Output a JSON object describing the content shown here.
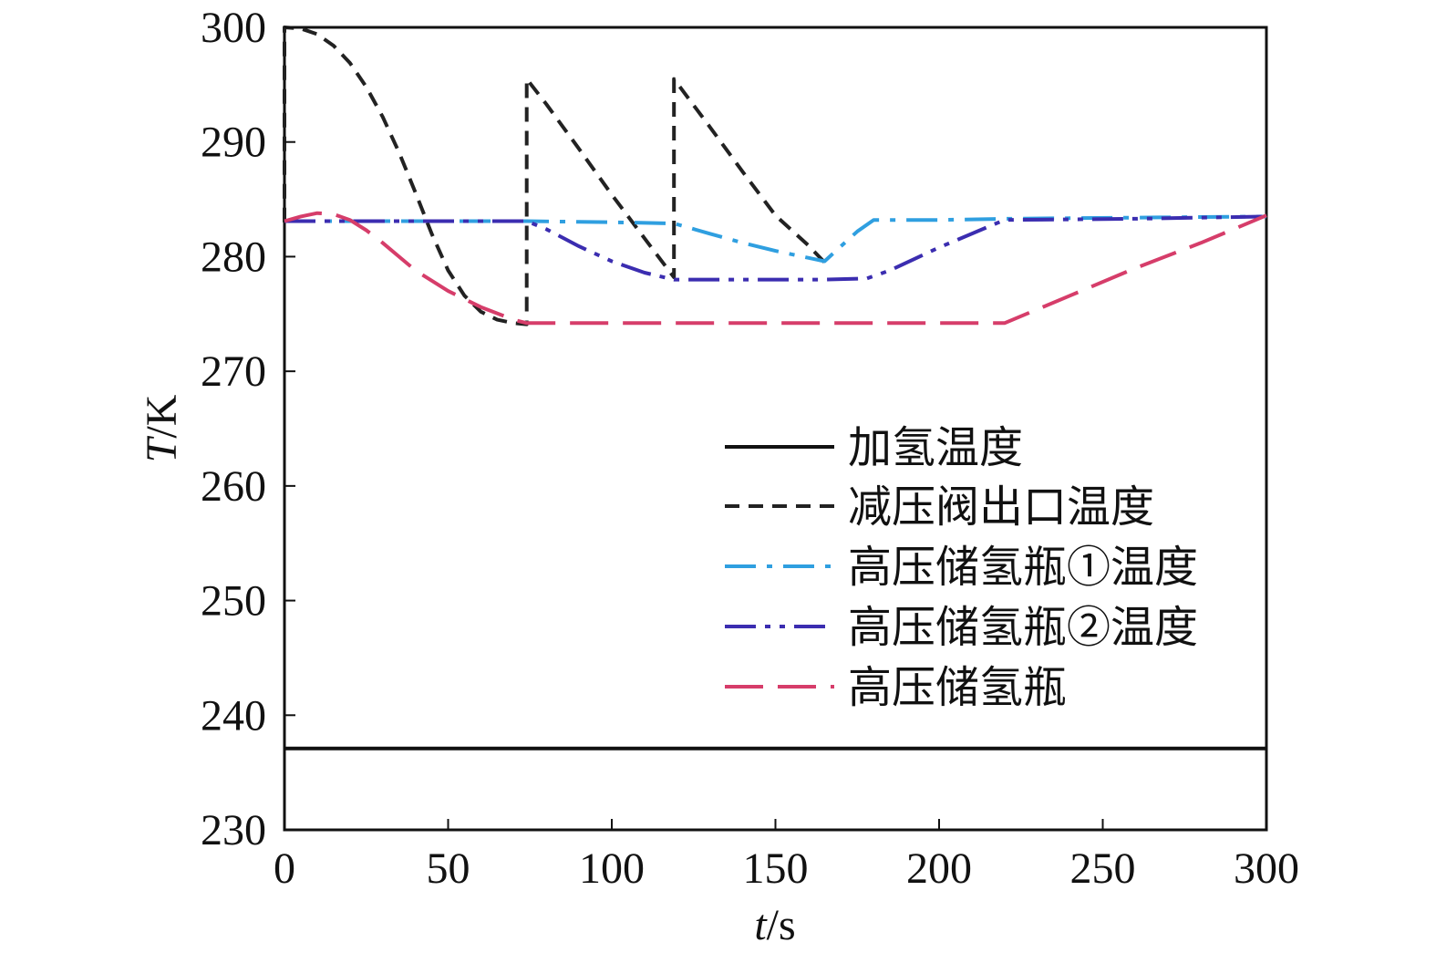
{
  "chart_data": {
    "type": "line",
    "title": "",
    "xlabel": {
      "var": "t",
      "unit": "/s"
    },
    "ylabel": {
      "var": "T",
      "unit": "/K"
    },
    "xlim": [
      0,
      300
    ],
    "ylim": [
      230,
      300
    ],
    "xticks": [
      0,
      50,
      100,
      150,
      200,
      250,
      300
    ],
    "yticks": [
      230,
      240,
      250,
      260,
      270,
      280,
      290,
      300
    ],
    "grid": false,
    "legend_position": "center-right",
    "series": [
      {
        "name": "加氢温度",
        "color": "#111111",
        "dash": "solid",
        "points": [
          [
            0,
            237.1
          ],
          [
            300,
            237.1
          ]
        ]
      },
      {
        "name": "减压阀出口温度",
        "color": "#222222",
        "dash": "dash",
        "points": [
          [
            0,
            283
          ],
          [
            0,
            300
          ],
          [
            5,
            299.9
          ],
          [
            10,
            299.4
          ],
          [
            15,
            298.4
          ],
          [
            20,
            296.9
          ],
          [
            25,
            294.8
          ],
          [
            30,
            292.2
          ],
          [
            35,
            289.1
          ],
          [
            40,
            285.6
          ],
          [
            45,
            282.0
          ],
          [
            50,
            278.8
          ],
          [
            55,
            276.6
          ],
          [
            60,
            275.2
          ],
          [
            65,
            274.5
          ],
          [
            70,
            274.2
          ],
          [
            74,
            274.1
          ],
          [
            74,
            295.5
          ],
          [
            80,
            293.3
          ],
          [
            90,
            289.4
          ],
          [
            100,
            285.4
          ],
          [
            110,
            281.6
          ],
          [
            119,
            278.2
          ],
          [
            119,
            295.5
          ],
          [
            130,
            291.3
          ],
          [
            140,
            287.4
          ],
          [
            150,
            283.6
          ],
          [
            160,
            281.0
          ],
          [
            165,
            279.5
          ]
        ]
      },
      {
        "name": "高压储氢瓶①温度",
        "color": "#2f9fe0",
        "dash": "dashdot",
        "points": [
          [
            0,
            283.1
          ],
          [
            74,
            283.1
          ],
          [
            100,
            283.0
          ],
          [
            119,
            282.9
          ],
          [
            130,
            282.0
          ],
          [
            140,
            281.2
          ],
          [
            150,
            280.5
          ],
          [
            160,
            279.9
          ],
          [
            165,
            279.6
          ],
          [
            170,
            280.9
          ],
          [
            175,
            282.2
          ],
          [
            180,
            283.2
          ],
          [
            200,
            283.2
          ],
          [
            220,
            283.3
          ],
          [
            300,
            283.5
          ]
        ]
      },
      {
        "name": "高压储氢瓶②温度",
        "color": "#3b2db0",
        "dash": "dashdotdot",
        "points": [
          [
            0,
            283.1
          ],
          [
            74,
            283.1
          ],
          [
            80,
            282.4
          ],
          [
            90,
            280.9
          ],
          [
            100,
            279.6
          ],
          [
            110,
            278.6
          ],
          [
            119,
            278.0
          ],
          [
            130,
            278.0
          ],
          [
            150,
            278.0
          ],
          [
            165,
            278.0
          ],
          [
            178,
            278.1
          ],
          [
            185,
            278.8
          ],
          [
            200,
            280.8
          ],
          [
            215,
            282.6
          ],
          [
            220,
            283.2
          ],
          [
            260,
            283.3
          ],
          [
            300,
            283.5
          ]
        ]
      },
      {
        "name": "高压储氢瓶",
        "color": "#d63d6a",
        "dash": "longdash",
        "points": [
          [
            0,
            283.1
          ],
          [
            5,
            283.5
          ],
          [
            10,
            283.8
          ],
          [
            15,
            283.7
          ],
          [
            20,
            283.2
          ],
          [
            25,
            282.3
          ],
          [
            30,
            281.2
          ],
          [
            35,
            280.0
          ],
          [
            40,
            278.8
          ],
          [
            50,
            277.0
          ],
          [
            60,
            275.6
          ],
          [
            70,
            274.5
          ],
          [
            74,
            274.2
          ],
          [
            100,
            274.2
          ],
          [
            150,
            274.2
          ],
          [
            200,
            274.2
          ],
          [
            220,
            274.2
          ],
          [
            240,
            276.6
          ],
          [
            260,
            279.0
          ],
          [
            280,
            281.2
          ],
          [
            300,
            283.6
          ]
        ]
      }
    ]
  }
}
